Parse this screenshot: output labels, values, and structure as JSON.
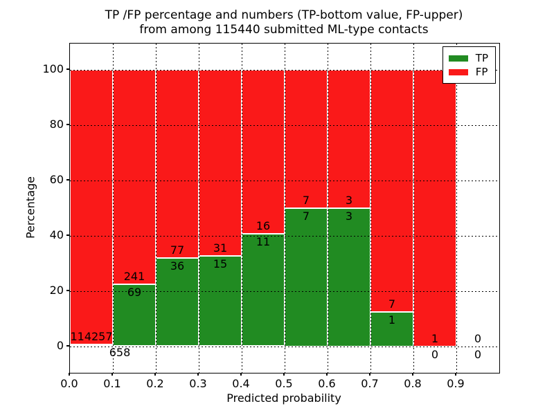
{
  "title": {
    "line1": "TP /FP percentage and numbers (TP-bottom value, FP-upper)",
    "line2": "from among 115440 submitted ML-type contacts"
  },
  "axes": {
    "xlabel": "Predicted probability",
    "ylabel": "Percentage"
  },
  "legend": {
    "position": "upper right",
    "items": [
      {
        "label": "TP",
        "color": "#218b22"
      },
      {
        "label": "FP",
        "color": "#fa1919"
      }
    ]
  },
  "chart_data": {
    "type": "bar",
    "subtype": "stacked-percentage",
    "title": "TP /FP percentage and numbers (TP-bottom value, FP-upper) from among 115440 submitted ML-type contacts",
    "xlabel": "Predicted probability",
    "ylabel": "Percentage",
    "total_contacts": 115440,
    "x_bin_edges": [
      0.0,
      0.1,
      0.2,
      0.3,
      0.4,
      0.5,
      0.6,
      0.7,
      0.8,
      0.9,
      1.0
    ],
    "categories": [
      "0.0-0.1",
      "0.1-0.2",
      "0.2-0.3",
      "0.3-0.4",
      "0.4-0.5",
      "0.5-0.6",
      "0.6-0.7",
      "0.7-0.8",
      "0.8-0.9",
      "0.9-1.0"
    ],
    "xticks": [
      "0.0",
      "0.1",
      "0.2",
      "0.3",
      "0.4",
      "0.5",
      "0.6",
      "0.7",
      "0.8",
      "0.9"
    ],
    "yticks": [
      0,
      20,
      40,
      60,
      80,
      100
    ],
    "ylim_visible": [
      -10,
      110
    ],
    "grid": "dotted",
    "legend_position": "upper right",
    "series": [
      {
        "name": "TP",
        "color": "#218b22",
        "values": [
          658,
          69,
          36,
          15,
          11,
          7,
          3,
          1,
          0,
          0
        ]
      },
      {
        "name": "FP",
        "color": "#fa1919",
        "values": [
          114257,
          241,
          77,
          31,
          16,
          7,
          3,
          7,
          1,
          0
        ]
      }
    ],
    "tp_percent_per_bin": [
      0.57,
      22.26,
      31.86,
      32.61,
      40.74,
      50.0,
      50.0,
      12.5,
      0.0,
      null
    ]
  }
}
